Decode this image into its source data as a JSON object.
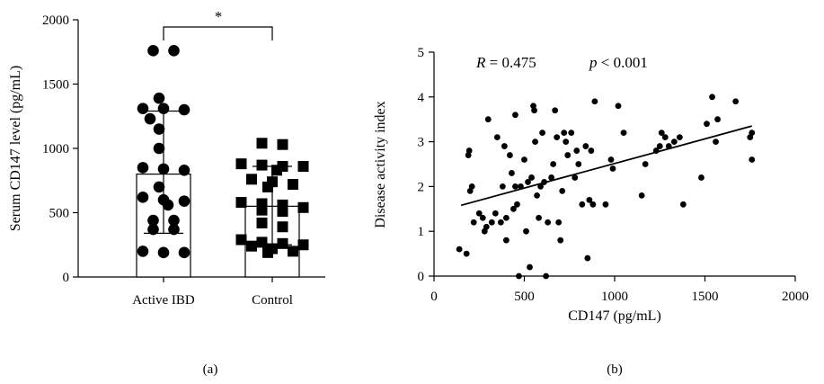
{
  "panels": [
    {
      "label": "(a)",
      "significance": "*",
      "chart_data": {
        "type": "bar",
        "categories": [
          "Active IBD",
          "Control"
        ],
        "ylabel": "Serum CD147 level (pg/mL)",
        "ylim": [
          0,
          2000
        ],
        "yticks": [
          0,
          500,
          1000,
          1500,
          2000
        ],
        "series": [
          {
            "mean": 800,
            "error_low": 340,
            "error_high": 1290,
            "marker": "circle",
            "points": [
              1760,
              1760,
              1390,
              1310,
              1310,
              1300,
              1230,
              1150,
              1000,
              850,
              840,
              830,
              700,
              620,
              600,
              590,
              560,
              440,
              440,
              370,
              370,
              200,
              190,
              190
            ]
          },
          {
            "mean": 550,
            "error_low": 250,
            "error_high": 860,
            "marker": "square",
            "points": [
              1040,
              1030,
              880,
              870,
              860,
              860,
              830,
              760,
              740,
              720,
              700,
              580,
              570,
              560,
              540,
              520,
              510,
              420,
              390,
              290,
              270,
              260,
              250,
              240,
              220,
              200,
              190
            ]
          }
        ]
      }
    },
    {
      "label": "(b)",
      "annotation_r": "R = 0.475",
      "annotation_p": "p < 0.001",
      "chart_data": {
        "type": "scatter",
        "xlabel": "CD147 (pg/mL)",
        "ylabel": "Disease activity index",
        "xlim": [
          0,
          2000
        ],
        "ylim": [
          0,
          5
        ],
        "xticks": [
          0,
          500,
          1000,
          1500,
          2000
        ],
        "yticks": [
          0,
          1,
          2,
          3,
          4,
          5
        ],
        "regression": {
          "x": [
            150,
            1760
          ],
          "y": [
            1.58,
            3.35
          ]
        },
        "points": [
          [
            140,
            0.6
          ],
          [
            180,
            0.5
          ],
          [
            190,
            2.7
          ],
          [
            195,
            2.8
          ],
          [
            200,
            1.9
          ],
          [
            210,
            2.0
          ],
          [
            220,
            1.2
          ],
          [
            250,
            1.4
          ],
          [
            270,
            1.3
          ],
          [
            280,
            1.0
          ],
          [
            290,
            1.1
          ],
          [
            300,
            3.5
          ],
          [
            320,
            1.2
          ],
          [
            340,
            1.4
          ],
          [
            350,
            3.1
          ],
          [
            370,
            1.2
          ],
          [
            380,
            2.0
          ],
          [
            390,
            2.9
          ],
          [
            400,
            0.8
          ],
          [
            400,
            1.3
          ],
          [
            420,
            2.7
          ],
          [
            430,
            2.3
          ],
          [
            440,
            1.5
          ],
          [
            450,
            2.0
          ],
          [
            450,
            3.6
          ],
          [
            460,
            1.6
          ],
          [
            470,
            0.0
          ],
          [
            480,
            2.0
          ],
          [
            500,
            2.6
          ],
          [
            510,
            1.0
          ],
          [
            520,
            2.1
          ],
          [
            530,
            0.2
          ],
          [
            540,
            2.2
          ],
          [
            550,
            3.8
          ],
          [
            555,
            3.7
          ],
          [
            560,
            3.0
          ],
          [
            570,
            1.8
          ],
          [
            580,
            1.3
          ],
          [
            590,
            2.0
          ],
          [
            600,
            3.2
          ],
          [
            610,
            2.1
          ],
          [
            620,
            0.0
          ],
          [
            630,
            1.2
          ],
          [
            650,
            2.2
          ],
          [
            660,
            2.5
          ],
          [
            670,
            3.7
          ],
          [
            680,
            3.1
          ],
          [
            690,
            1.2
          ],
          [
            700,
            0.8
          ],
          [
            710,
            1.9
          ],
          [
            720,
            3.2
          ],
          [
            730,
            3.0
          ],
          [
            740,
            2.7
          ],
          [
            760,
            3.2
          ],
          [
            780,
            2.2
          ],
          [
            790,
            2.8
          ],
          [
            800,
            2.5
          ],
          [
            820,
            1.6
          ],
          [
            840,
            2.9
          ],
          [
            850,
            0.4
          ],
          [
            860,
            1.7
          ],
          [
            870,
            2.8
          ],
          [
            880,
            1.6
          ],
          [
            890,
            3.9
          ],
          [
            950,
            1.6
          ],
          [
            980,
            2.6
          ],
          [
            990,
            2.4
          ],
          [
            1020,
            3.8
          ],
          [
            1050,
            3.2
          ],
          [
            1150,
            1.8
          ],
          [
            1170,
            2.5
          ],
          [
            1230,
            2.8
          ],
          [
            1250,
            2.9
          ],
          [
            1260,
            3.2
          ],
          [
            1280,
            3.1
          ],
          [
            1300,
            2.9
          ],
          [
            1330,
            3.0
          ],
          [
            1360,
            3.1
          ],
          [
            1380,
            1.6
          ],
          [
            1480,
            2.2
          ],
          [
            1510,
            3.4
          ],
          [
            1540,
            4.0
          ],
          [
            1560,
            3.0
          ],
          [
            1570,
            3.5
          ],
          [
            1670,
            3.9
          ],
          [
            1750,
            3.1
          ],
          [
            1760,
            3.2
          ],
          [
            1760,
            2.6
          ]
        ]
      }
    }
  ]
}
